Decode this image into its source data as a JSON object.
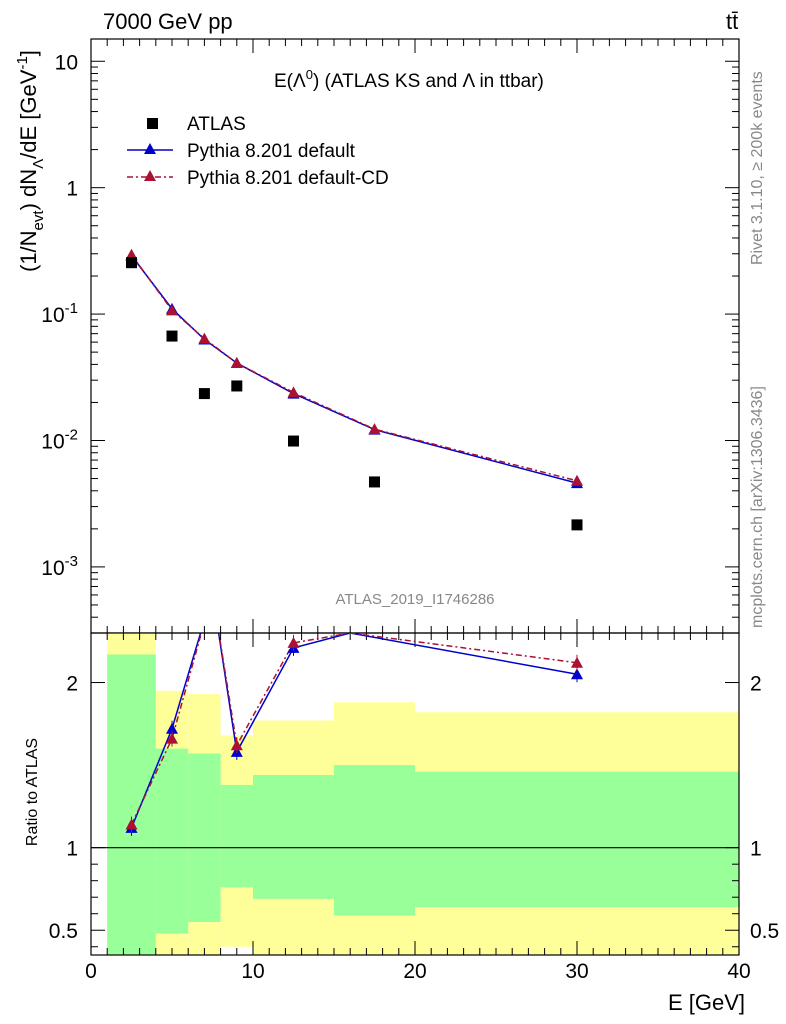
{
  "header": {
    "energy_label": "7000 GeV pp",
    "process_label": "tt̄"
  },
  "side_labels": {
    "rivet": "Rivet 3.1.10, ≥ 200k events",
    "mcplots": "mcplots.cern.ch [arXiv:1306.3436]"
  },
  "analysis_id": "ATLAS_2019_I1746286",
  "plot_title": {
    "main": "E(Λ",
    "sup": "0",
    "rest": ") (ATLAS KS and Λ in ttbar)"
  },
  "legend": {
    "placement": "top-left",
    "entries": [
      "ATLAS",
      "Pythia 8.201 default",
      "Pythia 8.201 default-CD"
    ]
  },
  "axes": {
    "ylabel_main": "(1/N",
    "ylabel_evt": "evt",
    "ylabel_mid": ") dN",
    "ylabel_lambda": "Λ",
    "ylabel_end": "/dE [GeV",
    "ylabel_exp": "-1",
    "ylabel_close": "]",
    "ratio_ylabel": "Ratio to ATLAS",
    "xlabel": "E [GeV]"
  },
  "colors": {
    "data": "#000000",
    "default": "#0000cc",
    "default_cd": "#aa1133",
    "band_inner": "#99ff99",
    "band_outer": "#ffff99"
  },
  "chart_data": {
    "type": "scatter",
    "xlim": [
      0,
      40
    ],
    "ylim": [
      0.0003,
      15
    ],
    "yscale": "log",
    "x_ticks": [
      "0",
      "10",
      "20",
      "30",
      "40"
    ],
    "y_ticks": [
      {
        "base": "10",
        "exp": "-3",
        "value": 0.001
      },
      {
        "base": "10",
        "exp": "-2",
        "value": 0.01
      },
      {
        "base": "10",
        "exp": "-1",
        "value": 0.1
      },
      {
        "base": "1",
        "exp": "",
        "value": 1
      },
      {
        "base": "10",
        "exp": "",
        "value": 10
      }
    ],
    "series": [
      {
        "name": "ATLAS",
        "x": [
          2.5,
          5,
          7,
          9,
          12.5,
          17.5,
          30
        ],
        "y": [
          0.255,
          0.067,
          0.0235,
          0.027,
          0.0099,
          0.0047,
          0.00215
        ]
      },
      {
        "name": "Pythia 8.201 default",
        "x": [
          2.5,
          5,
          7,
          9,
          12.5,
          17.5,
          30
        ],
        "y": [
          0.29,
          0.11,
          0.063,
          0.041,
          0.0235,
          0.0122,
          0.0046
        ]
      },
      {
        "name": "Pythia 8.201 default-CD",
        "x": [
          2.5,
          5,
          7,
          9,
          12.5,
          17.5,
          30
        ],
        "y": [
          0.295,
          0.107,
          0.064,
          0.041,
          0.024,
          0.0123,
          0.0048
        ]
      }
    ],
    "ratio": {
      "ylim": [
        0.35,
        2.3
      ],
      "y_ticks": [
        "0.5",
        "1",
        "2"
      ],
      "y_tick_values": [
        0.5,
        1,
        2
      ],
      "reference": 1,
      "series": [
        {
          "name": "Pythia 8.201 default",
          "x": [
            2.5,
            5,
            9,
            12.5,
            16,
            30
          ],
          "y": [
            1.12,
            1.72,
            1.58,
            2.21,
            2.3,
            2.05
          ]
        },
        {
          "name": "Pythia 8.201 default-CD",
          "x": [
            2.5,
            5,
            9,
            12.5,
            16,
            30
          ],
          "y": [
            1.14,
            1.66,
            1.62,
            2.24,
            2.3,
            2.12
          ]
        }
      ],
      "bands": [
        {
          "x_lo": 1,
          "x_hi": 4,
          "inner": [
            0.35,
            2.17
          ],
          "outer": [
            0.35,
            2.3
          ]
        },
        {
          "x_lo": 4,
          "x_hi": 6,
          "inner": [
            0.48,
            1.6
          ],
          "outer": [
            0.35,
            1.95
          ]
        },
        {
          "x_lo": 6,
          "x_hi": 8,
          "inner": [
            0.55,
            1.57
          ],
          "outer": [
            0.35,
            1.93
          ]
        },
        {
          "x_lo": 8,
          "x_hi": 10,
          "inner": [
            0.76,
            1.38
          ],
          "outer": [
            0.4,
            1.68
          ]
        },
        {
          "x_lo": 10,
          "x_hi": 15,
          "inner": [
            0.69,
            1.44
          ],
          "outer": [
            0.35,
            1.77
          ]
        },
        {
          "x_lo": 15,
          "x_hi": 20,
          "inner": [
            0.59,
            1.5
          ],
          "outer": [
            0.35,
            1.88
          ]
        },
        {
          "x_lo": 20,
          "x_hi": 40,
          "inner": [
            0.64,
            1.46
          ],
          "outer": [
            0.35,
            1.82
          ]
        }
      ]
    }
  }
}
